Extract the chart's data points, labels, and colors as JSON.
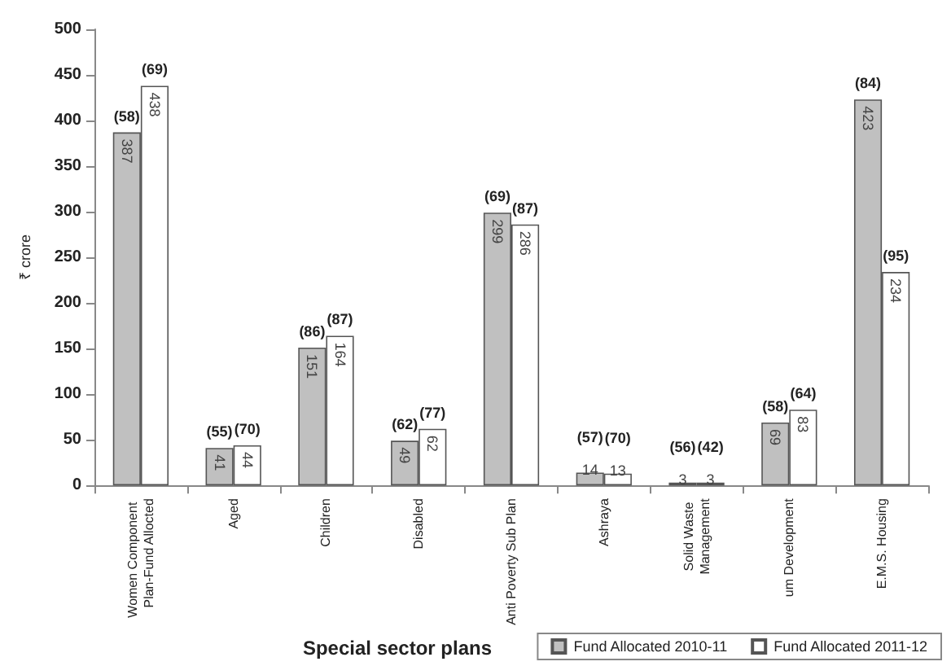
{
  "chart_data": {
    "type": "bar",
    "xlabel": "Special sector plans",
    "ylabel": "₹ crore",
    "categories": [
      "Women Component Plan-Fund Allocted",
      "Aged",
      "Children",
      "Disabled",
      "Anti Poverty Sub Plan",
      "Ashraya",
      "Solid Waste Management",
      "um Development",
      "E.M.S. Housing"
    ],
    "series": [
      {
        "name": "Fund Allocated 2010-11",
        "color": "#c0c0c0",
        "values": [
          387,
          41,
          151,
          49,
          299,
          14,
          3,
          69,
          423
        ]
      },
      {
        "name": "Fund Allocated 2011-12",
        "color": "#ffffff",
        "values": [
          438,
          44,
          164,
          62,
          286,
          13,
          3,
          83,
          234
        ]
      }
    ],
    "data_labels": true,
    "ylim": [
      0,
      500
    ],
    "yticks": [
      0,
      50,
      100,
      150,
      200,
      250,
      300,
      350,
      400,
      450,
      500
    ],
    "grid": false,
    "legend": "bottom right",
    "annotations": [
      {
        "text": "(58)",
        "x": "Women Component Plan-Fund Allocted",
        "y": 387
      },
      {
        "text": "(69)",
        "x": "Women Component Plan-Fund Allocted",
        "y": 438
      },
      {
        "text": "(55)",
        "x": "Aged",
        "y": 41
      },
      {
        "text": "(70)",
        "x": "Aged",
        "y": 44
      },
      {
        "text": "(86)",
        "x": "Children",
        "y": 151
      },
      {
        "text": "(87)",
        "x": "Children",
        "y": 164
      },
      {
        "text": "(62)",
        "x": "Disabled",
        "y": 49
      },
      {
        "text": "(77)",
        "x": "Disabled",
        "y": 62
      },
      {
        "text": "(69)",
        "x": "Anti Poverty Sub Plan",
        "y": 299
      },
      {
        "text": "(87)",
        "x": "Anti Poverty Sub Plan",
        "y": 286
      },
      {
        "text": "(57)",
        "x": "Ashraya",
        "y": 14
      },
      {
        "text": "(70)",
        "x": "Ashraya",
        "y": 13
      },
      {
        "text": "(56)",
        "x": "Solid Waste Management",
        "y": 3
      },
      {
        "text": "(42)",
        "x": "Solid Waste Management",
        "y": 3
      },
      {
        "text": "(58)",
        "x": "um Development",
        "y": 69
      },
      {
        "text": "(64)",
        "x": "um Development",
        "y": 83
      },
      {
        "text": "(84)",
        "x": "E.M.S. Housing",
        "y": 423
      },
      {
        "text": "(95)",
        "x": "E.M.S. Housing",
        "y": 234
      }
    ]
  }
}
